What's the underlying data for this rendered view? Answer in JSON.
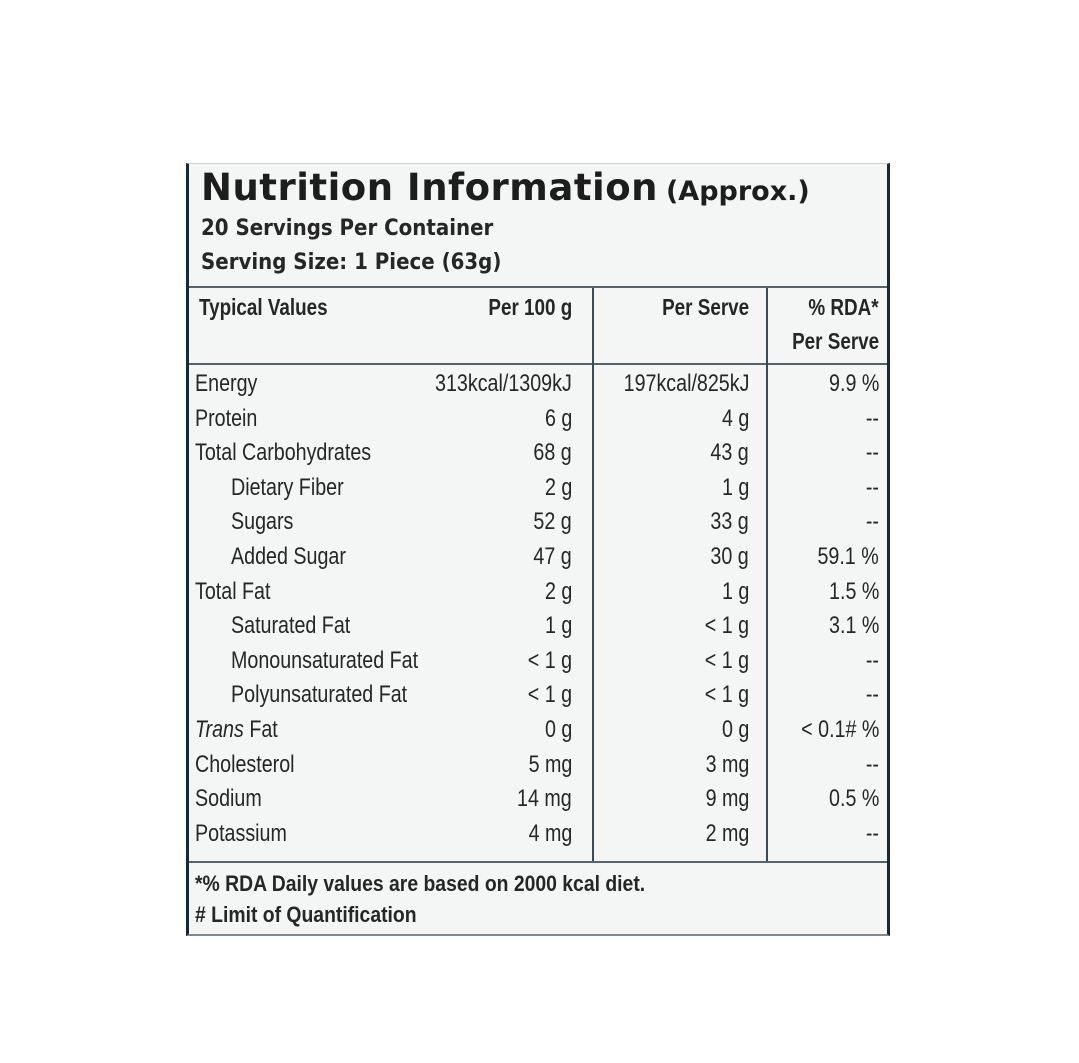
{
  "title": "Nutrition Information",
  "title_qualifier": "(Approx.)",
  "servings_per_container": "20 Servings Per Container",
  "serving_size": "Serving Size: 1 Piece (63g)",
  "columns": {
    "typical": "Typical Values",
    "per100": "Per 100 g",
    "perServe": "Per Serve",
    "rda_line1": "% RDA*",
    "rda_line2": "Per Serve"
  },
  "rows": [
    {
      "name": "Energy",
      "per100": "313kcal/1309kJ",
      "perServe": "197kcal/825kJ",
      "rda": "9.9 %",
      "indent": false,
      "italic_prefix": ""
    },
    {
      "name": "Protein",
      "per100": "6 g",
      "perServe": "4 g",
      "rda": "--",
      "indent": false,
      "italic_prefix": ""
    },
    {
      "name": "Total Carbohydrates",
      "per100": "68 g",
      "perServe": "43 g",
      "rda": "--",
      "indent": false,
      "italic_prefix": ""
    },
    {
      "name": "Dietary Fiber",
      "per100": "2 g",
      "perServe": "1 g",
      "rda": "--",
      "indent": true,
      "italic_prefix": ""
    },
    {
      "name": "Sugars",
      "per100": "52 g",
      "perServe": "33 g",
      "rda": "--",
      "indent": true,
      "italic_prefix": ""
    },
    {
      "name": "Added Sugar",
      "per100": "47 g",
      "perServe": "30 g",
      "rda": "59.1 %",
      "indent": true,
      "italic_prefix": ""
    },
    {
      "name": "Total Fat",
      "per100": "2 g",
      "perServe": "1 g",
      "rda": "1.5 %",
      "indent": false,
      "italic_prefix": ""
    },
    {
      "name": "Saturated Fat",
      "per100": "1 g",
      "perServe": "< 1 g",
      "rda": "3.1 %",
      "indent": true,
      "italic_prefix": ""
    },
    {
      "name": "Monounsaturated Fat",
      "per100": "< 1 g",
      "perServe": "< 1 g",
      "rda": "--",
      "indent": true,
      "italic_prefix": ""
    },
    {
      "name": "Polyunsaturated Fat",
      "per100": "< 1 g",
      "perServe": "< 1 g",
      "rda": "--",
      "indent": true,
      "italic_prefix": ""
    },
    {
      "name": " Fat",
      "per100": "0 g",
      "perServe": "0 g",
      "rda": "< 0.1# %",
      "indent": false,
      "italic_prefix": "Trans"
    },
    {
      "name": "Cholesterol",
      "per100": "5 mg",
      "perServe": "3 mg",
      "rda": "--",
      "indent": false,
      "italic_prefix": ""
    },
    {
      "name": "Sodium",
      "per100": "14 mg",
      "perServe": "9 mg",
      "rda": "0.5 %",
      "indent": false,
      "italic_prefix": ""
    },
    {
      "name": "Potassium",
      "per100": "4 mg",
      "perServe": "2 mg",
      "rda": "--",
      "indent": false,
      "italic_prefix": ""
    }
  ],
  "footnotes": {
    "rda": "*% RDA Daily values are based on 2000 kcal diet.",
    "loq": "# Limit of Quantification"
  }
}
